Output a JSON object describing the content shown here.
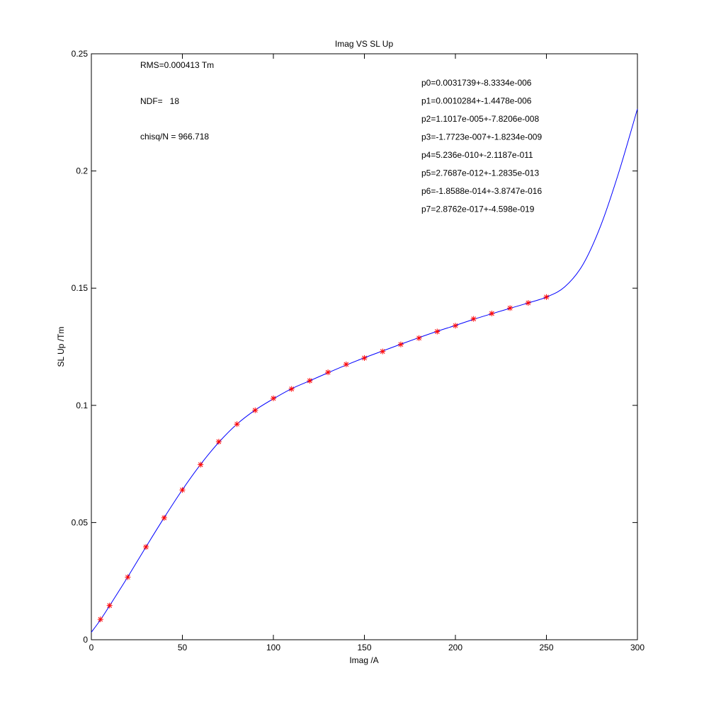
{
  "chart_data": {
    "type": "scatter",
    "title": "Imag VS SL Up",
    "xlabel": "Imag /A",
    "ylabel": "SL Up /Tm",
    "xlim": [
      0,
      300
    ],
    "ylim": [
      0,
      0.25
    ],
    "xticks": [
      0,
      50,
      100,
      150,
      200,
      250,
      300
    ],
    "xtick_labels": [
      "0",
      "50",
      "100",
      "150",
      "200",
      "250",
      "300"
    ],
    "yticks": [
      0,
      0.05,
      0.1,
      0.15,
      0.2,
      0.25
    ],
    "ytick_labels": [
      "0",
      "0.05",
      "0.1",
      "0.15",
      "0.2",
      "0.25"
    ],
    "grid": false,
    "series": [
      {
        "kind": "markers",
        "marker": "*",
        "color": "#ff0000",
        "x": [
          5,
          10,
          20,
          30,
          40,
          50,
          60,
          70,
          80,
          90,
          100,
          110,
          120,
          130,
          140,
          150,
          160,
          170,
          180,
          190,
          200,
          210,
          220,
          230,
          240,
          250
        ],
        "y": [
          0.0087,
          0.0146,
          0.0267,
          0.0396,
          0.052,
          0.0639,
          0.0747,
          0.0845,
          0.092,
          0.0979,
          0.103,
          0.107,
          0.1105,
          0.1141,
          0.1175,
          0.1202,
          0.123,
          0.126,
          0.1287,
          0.1315,
          0.134,
          0.1369,
          0.1392,
          0.1415,
          0.1437,
          0.1462
        ]
      },
      {
        "kind": "fit-line",
        "color": "#0000ff",
        "x": [
          0,
          5,
          10,
          20,
          30,
          40,
          50,
          60,
          70,
          80,
          90,
          100,
          110,
          120,
          130,
          140,
          150,
          160,
          170,
          180,
          190,
          200,
          210,
          220,
          230,
          240,
          250,
          260,
          270,
          280,
          290,
          300
        ],
        "y": [
          0.0032,
          0.0085,
          0.0145,
          0.0268,
          0.0396,
          0.0521,
          0.064,
          0.0748,
          0.0842,
          0.092,
          0.098,
          0.1028,
          0.1071,
          0.1105,
          0.1139,
          0.1172,
          0.1203,
          0.1232,
          0.1261,
          0.1289,
          0.1316,
          0.1341,
          0.1367,
          0.1391,
          0.1414,
          0.1437,
          0.1462,
          0.1505,
          0.16,
          0.177,
          0.2,
          0.2265
        ]
      }
    ],
    "annotations": [
      "RMS=0.000413 Tm",
      "NDF=   18",
      "chisq/N = 966.718",
      "p0=0.0031739+-8.3334e-006",
      "p1=0.0010284+-1.4478e-006",
      "p2=1.1017e-005+-7.8206e-008",
      "p3=-1.7723e-007+-1.8234e-009",
      "p4=5.236e-010+-2.1187e-011",
      "p5=2.7687e-012+-1.2835e-013",
      "p6=-1.8588e-014+-3.8747e-016",
      "p7=2.8762e-017+-4.598e-019"
    ]
  }
}
